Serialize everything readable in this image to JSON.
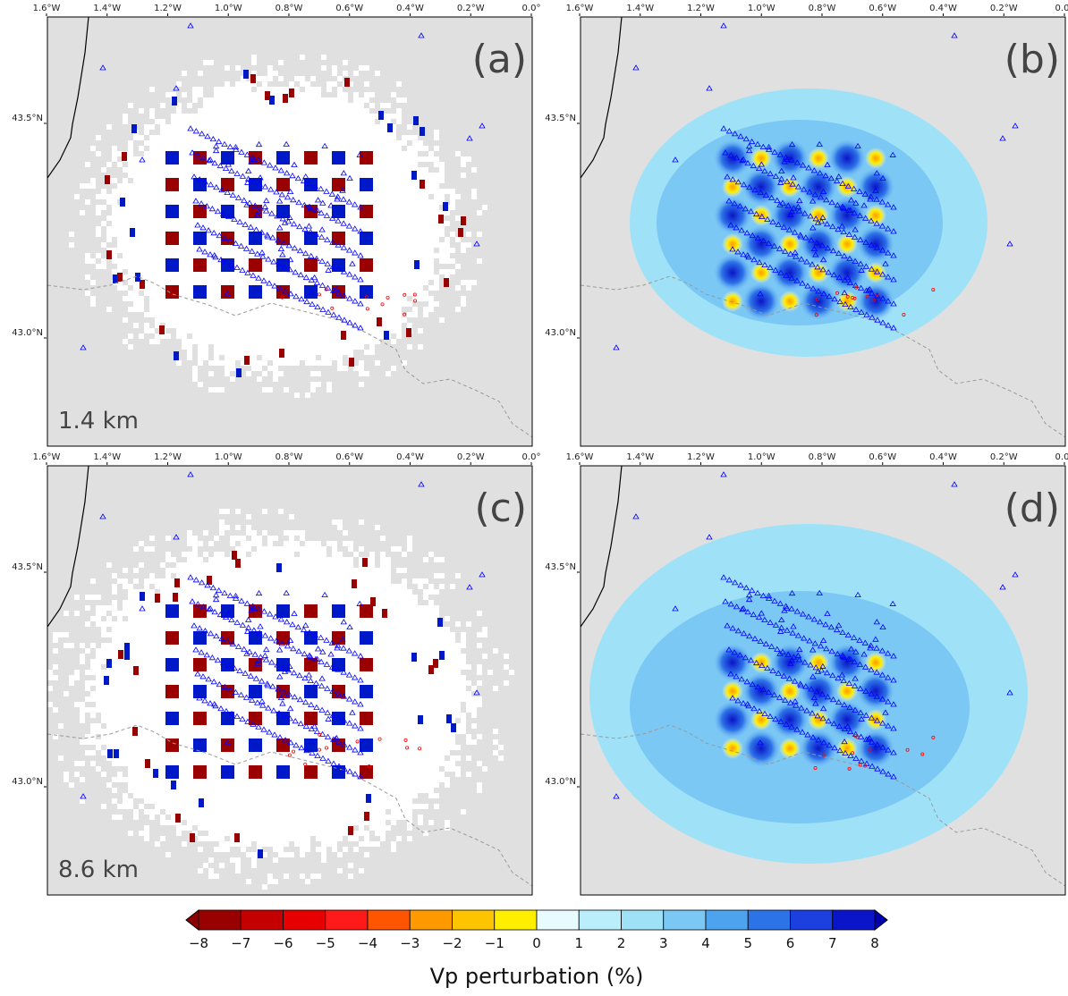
{
  "map": {
    "lon_ticks": [
      "1.6°W",
      "1.4°W",
      "1.2°W",
      "1.0°W",
      "0.8°W",
      "0.6°W",
      "0.4°W",
      "0.2°W",
      "0.0°"
    ],
    "lon_values": [
      -1.6,
      -1.4,
      -1.2,
      -1.0,
      -0.8,
      -0.6,
      -0.4,
      -0.2,
      0.0
    ],
    "lat_ticks": [
      "43.5°N",
      "43.0°N"
    ],
    "lat_values": [
      43.5,
      43.0
    ],
    "lon_range": [
      -1.6,
      0.0
    ],
    "lat_range": [
      42.75,
      43.75
    ],
    "land_color": "#e0e0e0",
    "coast_color": "#000000",
    "border_color": "#9a9a9a"
  },
  "panels": [
    {
      "label": "(a)",
      "depth": "1.4 km",
      "kind": "input"
    },
    {
      "label": "(b)",
      "depth": "",
      "kind": "output"
    },
    {
      "label": "(c)",
      "depth": "8.6 km",
      "kind": "input"
    },
    {
      "label": "(d)",
      "depth": "",
      "kind": "output"
    }
  ],
  "colorbar": {
    "title": "Vp perturbation (%)",
    "ticks": [
      "−8",
      "−7",
      "−6",
      "−5",
      "−4",
      "−3",
      "−2",
      "−1",
      "0",
      "1",
      "2",
      "3",
      "4",
      "5",
      "6",
      "7",
      "8"
    ],
    "colors": [
      "#990000",
      "#c40000",
      "#e60000",
      "#ff1a1a",
      "#ff5500",
      "#ff9900",
      "#ffc400",
      "#ffee00",
      "#fffbd0",
      "#e8fbff",
      "#b9eefa",
      "#9fe2f8",
      "#7cc8f5",
      "#4ea3ef",
      "#2d73e8",
      "#1c3fe0",
      "#0a14c8"
    ],
    "low_color": "#8b0000",
    "high_color": "#0000b0"
  },
  "symbols": {
    "station_color": "#0000ff",
    "event_color": "#ff0000",
    "positive_color": "#0019c8",
    "negative_color": "#9b0000"
  }
}
